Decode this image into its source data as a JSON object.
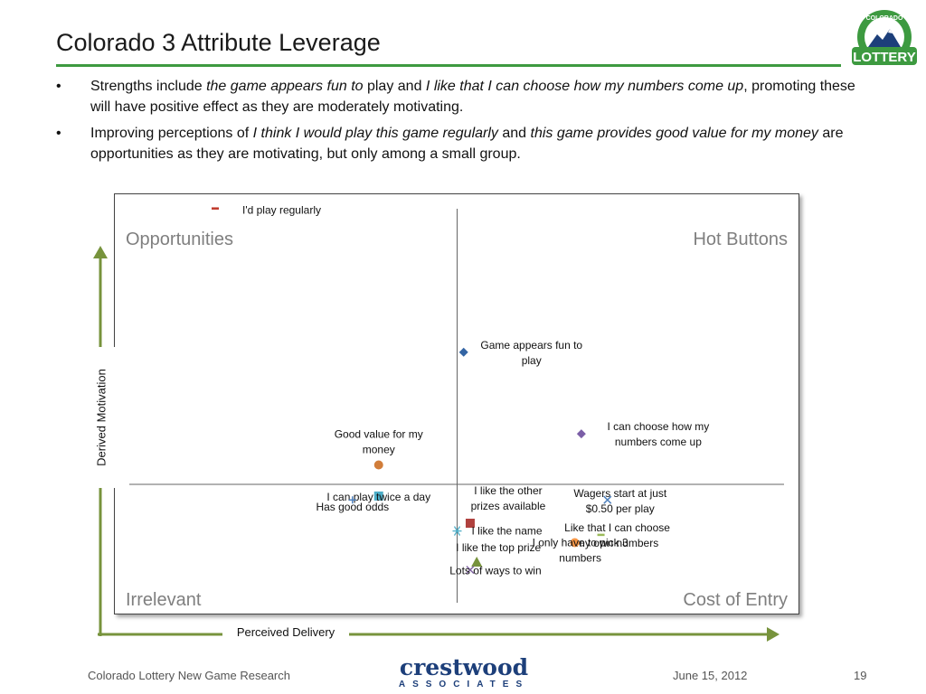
{
  "slide": {
    "title": "Colorado 3 Attribute Leverage",
    "bullets": [
      {
        "parts": [
          {
            "text": "Strengths include ",
            "italic": false
          },
          {
            "text": "the game appears fun to",
            "italic": true
          },
          {
            "text": " play and ",
            "italic": false
          },
          {
            "text": "I like that I can choose how my numbers come up",
            "italic": true
          },
          {
            "text": ", promoting these will have positive effect as they are moderately motivating.",
            "italic": false
          }
        ]
      },
      {
        "parts": [
          {
            "text": "Improving perceptions of ",
            "italic": false
          },
          {
            "text": "I think I would play this game regularly",
            "italic": true
          },
          {
            "text": " and ",
            "italic": false
          },
          {
            "text": "this game provides good value for my money",
            "italic": true
          },
          {
            "text": " are opportunities as they are motivating, but only among a small group.",
            "italic": false
          }
        ]
      }
    ],
    "logo": {
      "top_text": "COLORADO",
      "bottom_text": "LOTTERY",
      "accent": "#3d9a40"
    }
  },
  "chart_data": {
    "type": "scatter",
    "xlabel": "Perceived Delivery",
    "ylabel": "Derived Motivation",
    "xlim": [
      0,
      100
    ],
    "ylim": [
      0,
      100
    ],
    "divider": {
      "x": 50,
      "y": 30
    },
    "quadrants": {
      "top_left": "Opportunities",
      "top_right": "Hot Buttons",
      "bottom_left": "Irrelevant",
      "bottom_right": "Cost of Entry"
    },
    "points": [
      {
        "label": "I'd play regularly",
        "x": 13,
        "y": 101,
        "marker": "dash",
        "color": "#c0392b"
      },
      {
        "label": "Game appears fun to play",
        "x": 51,
        "y": 64,
        "marker": "diamond",
        "color": "#3465a4"
      },
      {
        "label": "I can choose how my numbers come up",
        "x": 69,
        "y": 43,
        "marker": "diamond",
        "color": "#7b5ea7"
      },
      {
        "label": "Good value for my money",
        "x": 38,
        "y": 35,
        "marker": "circle",
        "color": "#d17d3a"
      },
      {
        "label": "I can play twice a day",
        "x": 38,
        "y": 27,
        "marker": "square",
        "color": "#4bacc6"
      },
      {
        "label": "Has good odds",
        "x": 34,
        "y": 26,
        "marker": "plus",
        "color": "#4f81bd"
      },
      {
        "label": "I like the other prizes available",
        "x": 52,
        "y": 20,
        "marker": "square",
        "color": "#b0413e"
      },
      {
        "label": "I like the name",
        "x": 50,
        "y": 18,
        "marker": "asterisk",
        "color": "#4bacc6"
      },
      {
        "label": "Wagers start at just $0.50 per play",
        "x": 73,
        "y": 26,
        "marker": "x",
        "color": "#4f81bd"
      },
      {
        "label": "Like that I can choose my own numbers",
        "x": 72,
        "y": 17,
        "marker": "dash",
        "color": "#9bbb59"
      },
      {
        "label": "I only have to pick 3 numbers",
        "x": 68,
        "y": 15,
        "marker": "circle",
        "color": "#f79646"
      },
      {
        "label": "I like the top prize",
        "x": 53,
        "y": 10,
        "marker": "triangle",
        "color": "#77933c"
      },
      {
        "label": "Lots of ways to win",
        "x": 52,
        "y": 8,
        "marker": "x",
        "color": "#8064a2"
      }
    ]
  },
  "footer": {
    "left": "Colorado Lottery New Game Research",
    "company_name": "crestwood",
    "company_sub": "ASSOCIATES",
    "date": "June 15, 2012",
    "page": "19"
  }
}
